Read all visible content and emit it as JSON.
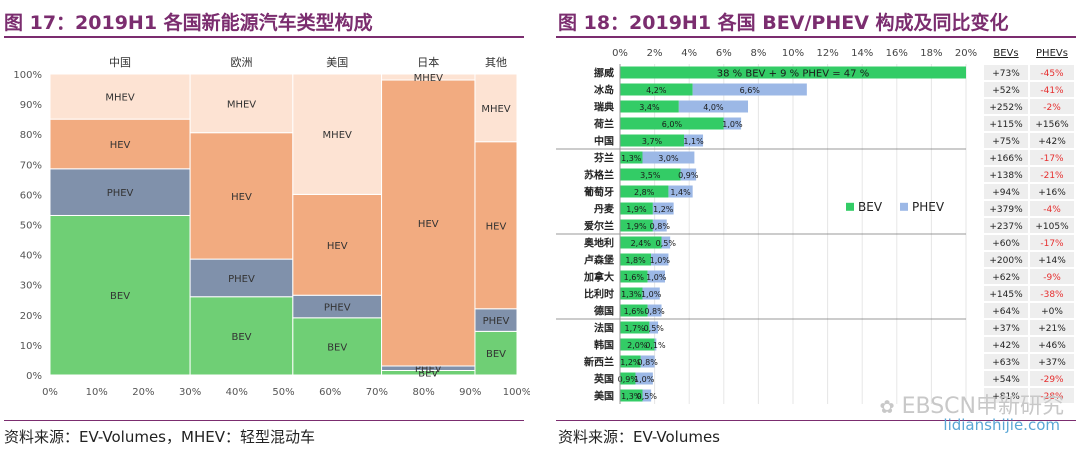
{
  "left": {
    "title": "图 17：2019H1 各国新能源汽车类型构成",
    "source": "资料来源：EV-Volumes，MHEV：轻型混动车"
  },
  "right": {
    "title": "图 18：2019H1 各国 BEV/PHEV 构成及同比变化",
    "source": "资料来源：EV-Volumes"
  },
  "watermark": {
    "text": "EBSCN申新研究",
    "url": "lidianshijie.com"
  },
  "colors": {
    "bev": "#6fcf75",
    "phev": "#8091ab",
    "hev": "#f2ab80",
    "mhev": "#fde3d3",
    "bev2": "#33cc66",
    "phev2": "#9cb8e6",
    "red": "#e62e2e",
    "title": "#7b2d6f"
  },
  "chart_data": [
    {
      "type": "marimekko",
      "x_tick_labels": [
        "0%",
        "10%",
        "20%",
        "30%",
        "40%",
        "50%",
        "60%",
        "70%",
        "80%",
        "90%",
        "100%"
      ],
      "y_tick_labels": [
        "0%",
        "10%",
        "20%",
        "30%",
        "40%",
        "50%",
        "60%",
        "70%",
        "80%",
        "90%",
        "100%"
      ],
      "xlim": [
        0,
        100
      ],
      "ylim": [
        0,
        100
      ],
      "categories": [
        {
          "name": "中国",
          "x0": 0,
          "x1": 30,
          "BEV": 53,
          "PHEV": 15.5,
          "HEV": 16.5,
          "MHEV": 15
        },
        {
          "name": "欧洲",
          "x0": 30,
          "x1": 52,
          "BEV": 26,
          "PHEV": 12.5,
          "HEV": 42,
          "MHEV": 19.5
        },
        {
          "name": "美国",
          "x0": 52,
          "x1": 71,
          "BEV": 19,
          "PHEV": 7.5,
          "HEV": 33.5,
          "MHEV": 40
        },
        {
          "name": "日本",
          "x0": 71,
          "x1": 91,
          "BEV": 1.5,
          "PHEV": 1.5,
          "HEV": 95,
          "MHEV": 2
        },
        {
          "name": "其他",
          "x0": 91,
          "x1": 100,
          "BEV": 14.5,
          "PHEV": 7.5,
          "HEV": 55.5,
          "MHEV": 22.5
        }
      ],
      "segment_labels": [
        "BEV",
        "PHEV",
        "HEV",
        "MHEV"
      ]
    },
    {
      "type": "bar",
      "stacked": true,
      "orientation": "horizontal",
      "x_tick_labels": [
        "0%",
        "2%",
        "4%",
        "6%",
        "8%",
        "10%",
        "12%",
        "14%",
        "16%",
        "18%",
        "20%"
      ],
      "xlim": [
        0,
        20
      ],
      "legend": [
        "BEV",
        "PHEV"
      ],
      "legend_position": "right-middle",
      "col_headers": [
        "BEVs",
        "PHEVs"
      ],
      "norway_label": "38 % BEV + 9 % PHEV = 47 %",
      "rows": [
        {
          "country": "挪威",
          "bev": 38,
          "phev": 9,
          "bev_label": "",
          "phev_label": "",
          "bev_yoy": "+73%",
          "phev_yoy": "-45%"
        },
        {
          "country": "冰岛",
          "bev": 4.2,
          "phev": 6.6,
          "bev_label": "4,2%",
          "phev_label": "6,6%",
          "bev_yoy": "+52%",
          "phev_yoy": "-41%"
        },
        {
          "country": "瑞典",
          "bev": 3.4,
          "phev": 4.0,
          "bev_label": "3,4%",
          "phev_label": "4,0%",
          "bev_yoy": "+252%",
          "phev_yoy": "-2%"
        },
        {
          "country": "荷兰",
          "bev": 6.0,
          "phev": 1.0,
          "bev_label": "6,0%",
          "phev_label": "1,0%",
          "bev_yoy": "+115%",
          "phev_yoy": "+156%"
        },
        {
          "country": "中国",
          "bev": 3.7,
          "phev": 1.1,
          "bev_label": "3,7%",
          "phev_label": "1,1%",
          "bev_yoy": "+75%",
          "phev_yoy": "+42%"
        },
        {
          "country": "芬兰",
          "bev": 1.3,
          "phev": 3.0,
          "bev_label": "1,3%",
          "phev_label": "3,0%",
          "bev_yoy": "+166%",
          "phev_yoy": "-17%"
        },
        {
          "country": "苏格兰",
          "bev": 3.5,
          "phev": 0.9,
          "bev_label": "3,5%",
          "phev_label": "0,9%",
          "bev_yoy": "+138%",
          "phev_yoy": "-21%"
        },
        {
          "country": "葡萄牙",
          "bev": 2.8,
          "phev": 1.4,
          "bev_label": "2,8%",
          "phev_label": "1,4%",
          "bev_yoy": "+94%",
          "phev_yoy": "+16%"
        },
        {
          "country": "丹麦",
          "bev": 1.9,
          "phev": 1.2,
          "bev_label": "1,9%",
          "phev_label": "1,2%",
          "bev_yoy": "+379%",
          "phev_yoy": "-4%"
        },
        {
          "country": "爱尔兰",
          "bev": 1.9,
          "phev": 0.8,
          "bev_label": "1,9%",
          "phev_label": "0,8%",
          "bev_yoy": "+237%",
          "phev_yoy": "+105%"
        },
        {
          "country": "奥地利",
          "bev": 2.4,
          "phev": 0.5,
          "bev_label": "2,4%",
          "phev_label": "0,5%",
          "bev_yoy": "+60%",
          "phev_yoy": "-17%"
        },
        {
          "country": "卢森堡",
          "bev": 1.8,
          "phev": 1.0,
          "bev_label": "1,8%",
          "phev_label": "1,0%",
          "bev_yoy": "+200%",
          "phev_yoy": "+14%"
        },
        {
          "country": "加拿大",
          "bev": 1.6,
          "phev": 1.0,
          "bev_label": "1,6%",
          "phev_label": "1,0%",
          "bev_yoy": "+62%",
          "phev_yoy": "-9%"
        },
        {
          "country": "比利时",
          "bev": 1.3,
          "phev": 1.0,
          "bev_label": "1,3%",
          "phev_label": "1,0%",
          "bev_yoy": "+145%",
          "phev_yoy": "-38%"
        },
        {
          "country": "德国",
          "bev": 1.6,
          "phev": 0.8,
          "bev_label": "1,6%",
          "phev_label": "0,8%",
          "bev_yoy": "+64%",
          "phev_yoy": "+0%"
        },
        {
          "country": "法国",
          "bev": 1.7,
          "phev": 0.5,
          "bev_label": "1,7%",
          "phev_label": "0,5%",
          "bev_yoy": "+37%",
          "phev_yoy": "+21%"
        },
        {
          "country": "韩国",
          "bev": 2.0,
          "phev": 0.1,
          "bev_label": "2,0%",
          "phev_label": "0,1%",
          "bev_yoy": "+42%",
          "phev_yoy": "+46%"
        },
        {
          "country": "新西兰",
          "bev": 1.2,
          "phev": 0.8,
          "bev_label": "1,2%",
          "phev_label": "0,8%",
          "bev_yoy": "+63%",
          "phev_yoy": "+37%"
        },
        {
          "country": "英国",
          "bev": 0.9,
          "phev": 1.0,
          "bev_label": "0,9%",
          "phev_label": "1,0%",
          "bev_yoy": "+54%",
          "phev_yoy": "-29%"
        },
        {
          "country": "美国",
          "bev": 1.3,
          "phev": 0.5,
          "bev_label": "1,3%",
          "phev_label": "0,5%",
          "bev_yoy": "+81%",
          "phev_yoy": "-28%"
        }
      ]
    }
  ]
}
